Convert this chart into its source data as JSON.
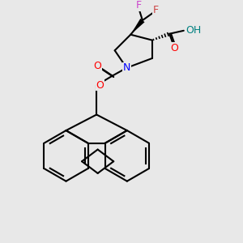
{
  "bg_color": "#e8e8e8",
  "bond_color": "#000000",
  "bond_width": 1.5,
  "atom_colors": {
    "O": "#ff0000",
    "N": "#0000ff",
    "F1": "#cc44cc",
    "F2": "#cc4444",
    "OH": "#008080",
    "C": "#000000"
  }
}
